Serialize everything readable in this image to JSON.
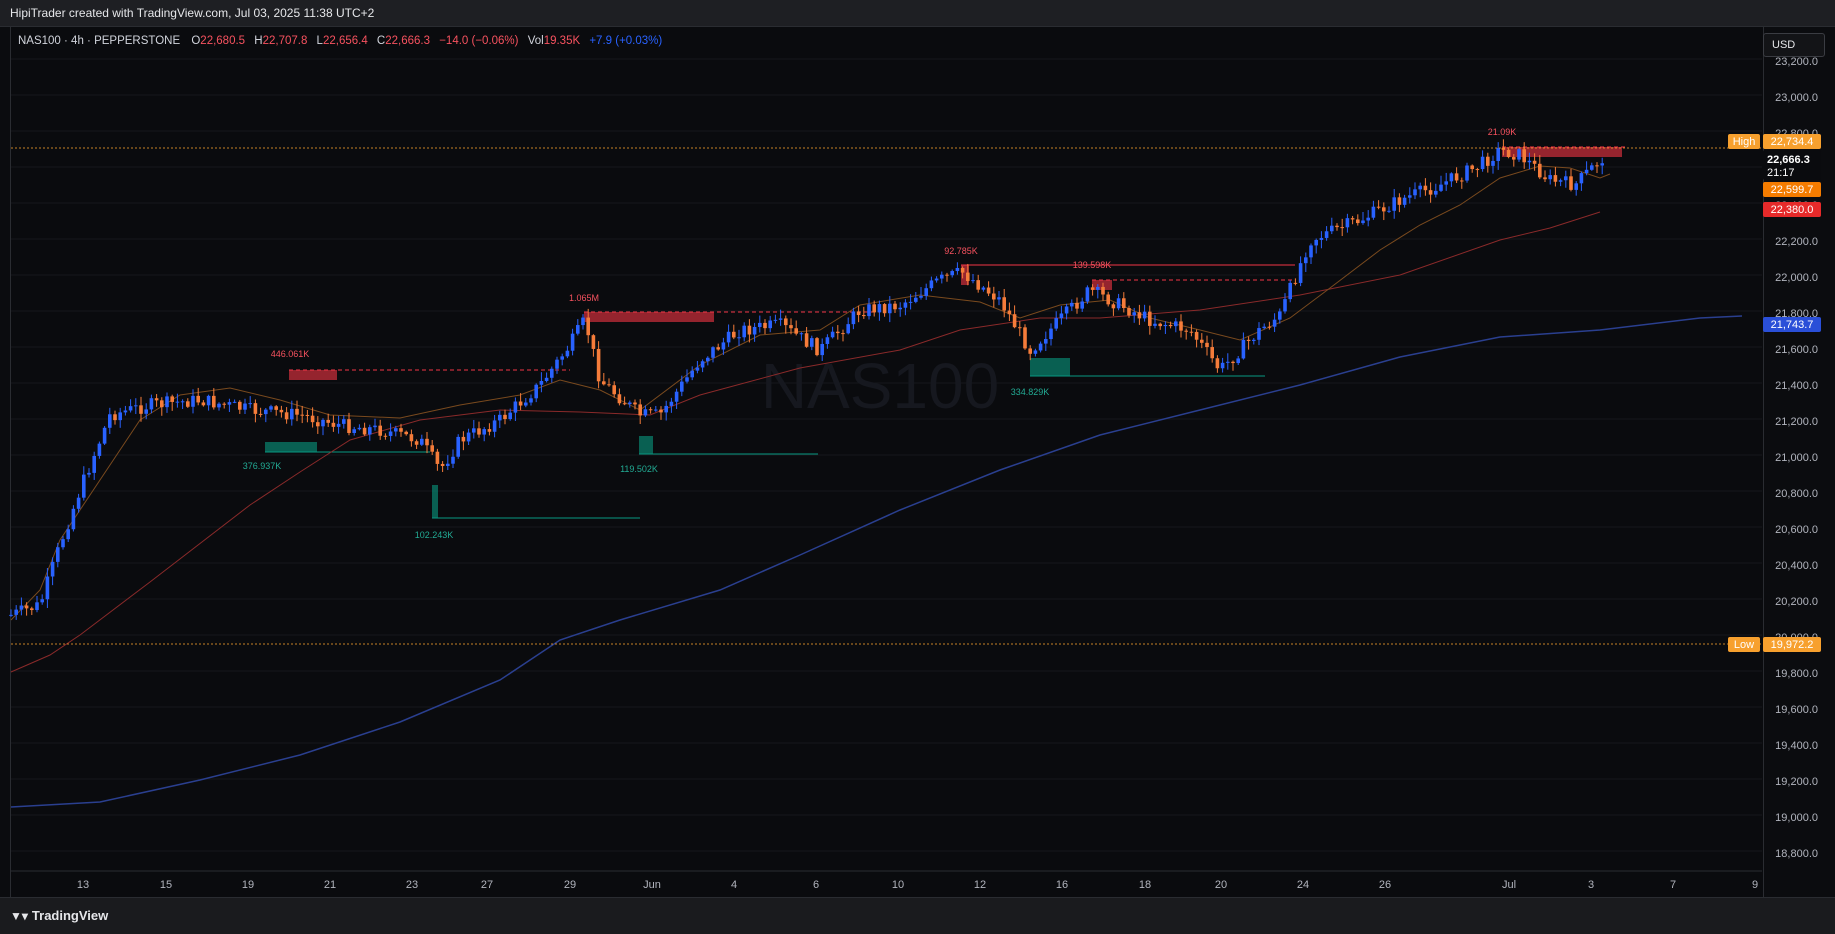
{
  "header": {
    "credit": "HipiTrader created with TradingView.com, Jul 03, 2025 11:38 UTC+2"
  },
  "legend": {
    "symbol": "NAS100 · 4h · PEPPERSTONE",
    "open_label": "O",
    "open": "22,680.5",
    "high_label": "H",
    "high": "22,707.8",
    "low_label": "L",
    "low": "22,656.4",
    "close_label": "C",
    "close": "22,666.3",
    "change": "−14.0 (−0.06%)",
    "vol_label": "Vol",
    "vol": "19.35K",
    "vol_change": "+7.9 (+0.03%)"
  },
  "currency_button": "USD",
  "watermark": "NAS100",
  "price_axis": {
    "ticks": [
      "23,200.0",
      "23,000.0",
      "22,800.0",
      "22,600.0",
      "22,400.0",
      "22,200.0",
      "22,000.0",
      "21,800.0",
      "21,600.0",
      "21,400.0",
      "21,200.0",
      "21,000.0",
      "20,800.0",
      "20,600.0",
      "20,400.0",
      "20,200.0",
      "20,000.0",
      "19,800.0",
      "19,600.0",
      "19,400.0",
      "19,200.0",
      "19,000.0",
      "18,800.0"
    ],
    "labels": {
      "high_tag": "High",
      "high_value": "22,734.4",
      "last_price": "22,666.3",
      "countdown": "21:17",
      "ema_fast": "22,599.7",
      "ema_mid": "22,380.0",
      "ema_slow": "21,743.7",
      "low_tag": "Low",
      "low_value": "19,972.2"
    }
  },
  "time_axis": [
    "13",
    "15",
    "19",
    "21",
    "23",
    "27",
    "29",
    "Jun",
    "4",
    "6",
    "10",
    "12",
    "16",
    "18",
    "20",
    "24",
    "26",
    "Jul",
    "3",
    "7",
    "9"
  ],
  "volume_labels": {
    "r1": "446.061K",
    "r2": "1.065M",
    "r3": "92.785K",
    "r4": "139.598K",
    "r5": "21.09K",
    "g1": "376.937K",
    "g2": "102.243K",
    "g3": "119.502K",
    "g4": "334.829K"
  },
  "colors": {
    "background": "#0a0b0e",
    "bull": "#2962ff",
    "bear": "#f57c3a",
    "supply": "#f23645",
    "demand": "#089981",
    "ema_fast": "#e07a2e",
    "ema_mid": "#f23645",
    "ema_slow": "#2a3f8f",
    "high_low": "#f7a02e"
  },
  "footer": {
    "brand": "TradingView",
    "logo_icon": "tradingview-logo-icon"
  }
}
